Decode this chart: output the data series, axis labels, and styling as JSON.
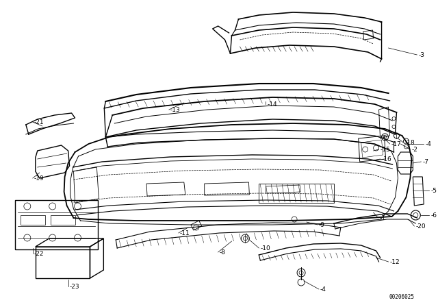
{
  "bg_color": "#ffffff",
  "line_color": "#000000",
  "fig_width": 6.4,
  "fig_height": 4.48,
  "dpi": 100,
  "watermark": "00206025"
}
